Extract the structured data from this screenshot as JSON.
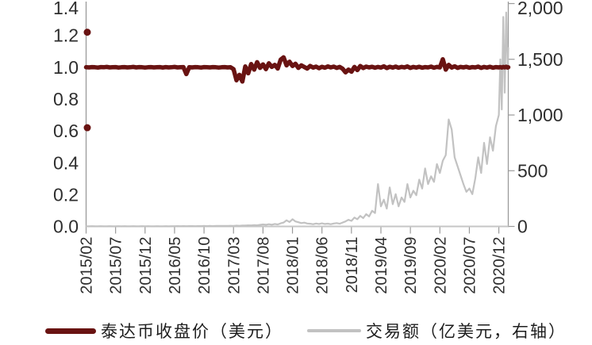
{
  "chart_data": {
    "type": "line",
    "title": "",
    "grid": false,
    "legend_position": "bottom",
    "left_axis": {
      "min": 0,
      "max": 1.4,
      "tick_values": [
        1.4,
        1.2,
        1.0,
        0.8,
        0.6,
        0.4,
        0.2,
        0.0
      ],
      "ticks": [
        "1.4",
        "1.2",
        "1.0",
        "0.8",
        "0.6",
        "0.4",
        "0.2",
        "0.0"
      ]
    },
    "right_axis": {
      "min": 0,
      "max": 2000,
      "tick_values": [
        2000,
        1500,
        1000,
        500,
        0
      ],
      "ticks": [
        "2,000",
        "1,500",
        "1,000",
        "500",
        "0"
      ]
    },
    "x_axis": {
      "start_month": "2015/02",
      "tick_interval_months": 5,
      "tick_labels": [
        "2015/02",
        "2015/07",
        "2015/12",
        "2016/05",
        "2016/10",
        "2017/03",
        "2017/08",
        "2018/01",
        "2018/06",
        "2018/11",
        "2019/04",
        "2019/09",
        "2020/02",
        "2020/07",
        "2020/12"
      ]
    },
    "t": {
      "start": 0,
      "step": 0.5,
      "count": 140,
      "extra": [
        70,
        70.25,
        70.5,
        70.75,
        71,
        71.25,
        71.5,
        71.65
      ]
    },
    "series": [
      {
        "name": "泰达币收盘价（美元）",
        "axis": "left",
        "color": "#691312",
        "width": 5.5,
        "values": [
          1.0,
          0.999,
          1.001,
          1.0,
          0.998,
          1.001,
          1.0,
          1.002,
          0.999,
          1.0,
          1.001,
          0.998,
          1.0,
          1.001,
          0.999,
          1.0,
          1.002,
          0.999,
          1.001,
          1.0,
          0.998,
          1.0,
          1.001,
          0.999,
          1.0,
          1.001,
          0.998,
          1.001,
          0.999,
          1.0,
          1.002,
          0.999,
          1.0,
          1.001,
          0.957,
          1.0,
          0.999,
          1.001,
          1.0,
          0.998,
          1.001,
          1.0,
          0.999,
          1.001,
          1.0,
          0.998,
          1.0,
          1.001,
          0.999,
          1.0,
          0.988,
          0.918,
          0.952,
          0.91,
          1.005,
          0.962,
          1.02,
          0.985,
          1.032,
          0.996,
          1.018,
          0.988,
          1.025,
          1.002,
          1.015,
          0.992,
          1.048,
          1.062,
          1.012,
          1.035,
          1.008,
          1.022,
          0.996,
          1.012,
          1.002,
          0.992,
          1.008,
          0.998,
          1.004,
          0.994,
          1.003,
          0.997,
          1.005,
          0.999,
          1.004,
          0.996,
          1.002,
          0.991,
          0.968,
          0.985,
          0.972,
          1.002,
          0.982,
          1.008,
          0.995,
          1.004,
          0.999,
          1.003,
          0.997,
          1.002,
          0.998,
          1.006,
          0.995,
          1.003,
          0.998,
          1.004,
          0.997,
          1.002,
          0.999,
          1.005,
          0.996,
          1.002,
          0.998,
          1.003,
          0.997,
          1.001,
          0.999,
          1.004,
          0.997,
          1.002,
          0.999,
          1.05,
          0.985,
          1.015,
          0.998,
          1.006,
          0.996,
          1.002,
          0.999,
          1.003,
          0.997,
          1.001,
          0.999,
          1.004,
          0.996,
          1.002,
          0.998,
          1.003,
          0.997,
          1.001,
          0.999,
          1.001,
          0.998,
          1.002,
          0.999,
          1.003,
          0.998,
          1.0
        ]
      },
      {
        "name": "交易额（亿美元，右轴）",
        "axis": "right",
        "color": "#c2c2c2",
        "width": 2.2,
        "values": [
          1,
          1,
          2,
          1,
          1,
          2,
          1,
          1,
          2,
          1,
          1,
          2,
          1,
          2,
          1,
          1,
          2,
          1,
          1,
          2,
          1,
          2,
          1,
          1,
          2,
          1,
          1,
          2,
          1,
          2,
          2,
          3,
          2,
          3,
          2,
          3,
          3,
          2,
          3,
          3,
          4,
          3,
          4,
          3,
          4,
          5,
          4,
          5,
          5,
          6,
          5,
          7,
          6,
          8,
          8,
          10,
          9,
          12,
          10,
          14,
          18,
          15,
          20,
          16,
          22,
          18,
          28,
          35,
          55,
          40,
          65,
          45,
          38,
          30,
          34,
          26,
          24,
          20,
          26,
          22,
          28,
          22,
          25,
          20,
          26,
          30,
          24,
          35,
          45,
          60,
          50,
          80,
          65,
          95,
          75,
          110,
          90,
          140,
          120,
          380,
          180,
          240,
          160,
          350,
          200,
          290,
          180,
          260,
          220,
          380,
          260,
          320,
          280,
          420,
          340,
          520,
          380,
          450,
          400,
          560,
          480,
          590,
          640,
          960,
          870,
          620,
          540,
          460,
          380,
          310,
          340,
          290,
          430,
          620,
          480,
          750,
          560,
          800,
          680,
          900,
          1000,
          1500,
          1050,
          1880,
          1200,
          1920,
          1450,
          1600
        ]
      }
    ],
    "outlier_points": [
      {
        "t": 0.2,
        "value": 1.22
      },
      {
        "t": 0.2,
        "value": 0.62
      }
    ]
  },
  "legend": {
    "items": [
      {
        "label": "泰达币收盘价（美元）",
        "color": "#691312"
      },
      {
        "label": "交易额（亿美元，右轴）",
        "color": "#c2c2c2"
      }
    ]
  }
}
